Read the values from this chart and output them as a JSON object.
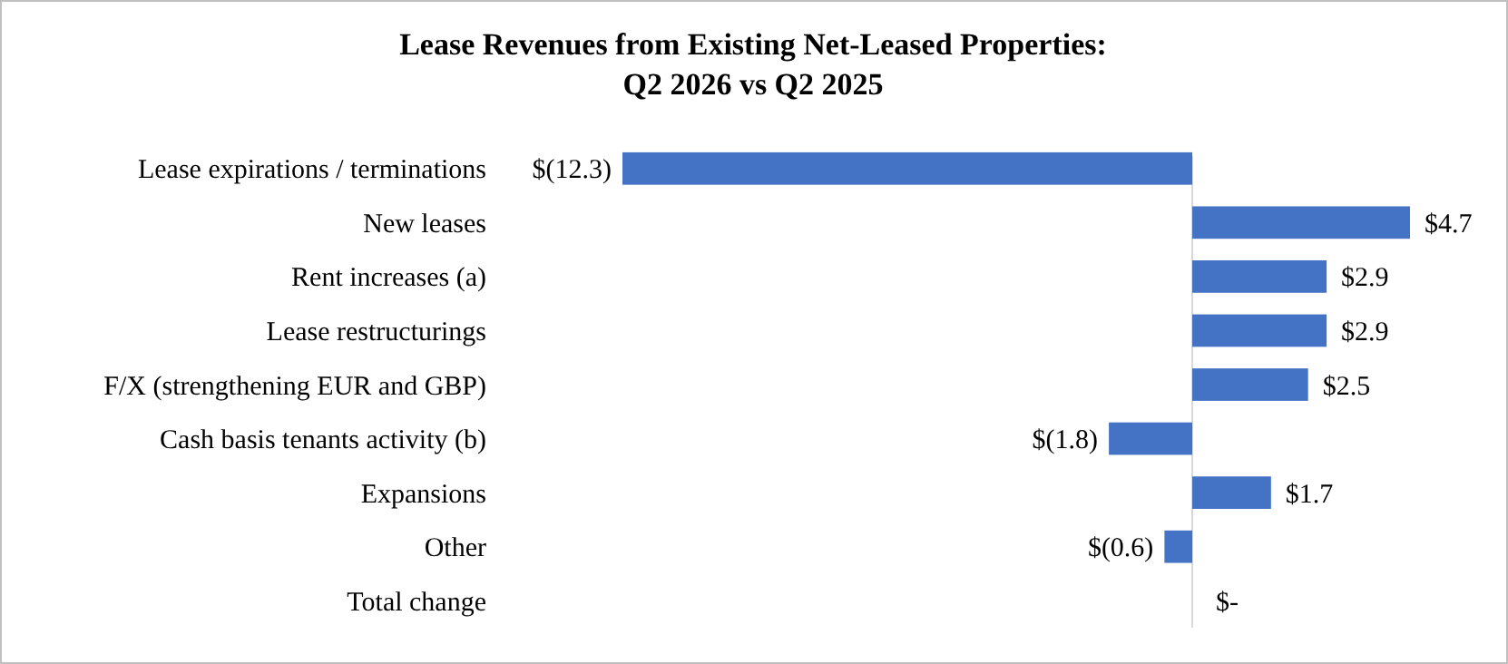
{
  "chart_data": {
    "type": "bar",
    "orientation": "horizontal",
    "title": "Lease Revenues from Existing Net-Leased Properties:\nQ2 2026 vs Q2 2025",
    "categories": [
      "Lease expirations / terminations",
      "New leases",
      "Rent increases (a)",
      "Lease restructurings",
      "F/X (strengthening EUR and GBP)",
      "Cash basis tenants activity (b)",
      "Expansions",
      "Other",
      "Total change"
    ],
    "values": [
      -12.3,
      4.7,
      2.9,
      2.9,
      2.5,
      -1.8,
      1.7,
      -0.6,
      0
    ],
    "value_labels": [
      "$(12.3)",
      "$4.7",
      "$2.9",
      "$2.9",
      "$2.5",
      "$(1.8)",
      "$1.7",
      "$(0.6)",
      "$-"
    ],
    "color": "#4472c4"
  }
}
